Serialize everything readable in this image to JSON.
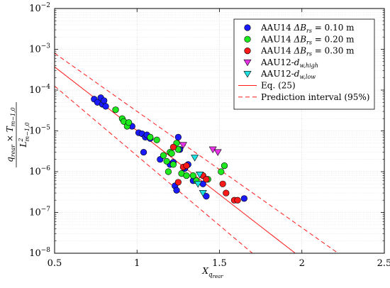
{
  "chart_data": {
    "type": "scatter",
    "title": "",
    "xlabel": "X_q_rear",
    "ylabel": "q_rear × T_m-1,0 / L²_m-1,0",
    "x_axis": {
      "range": [
        0.5,
        2.5
      ],
      "ticks": [
        0.5,
        1,
        1.5,
        2,
        2.5
      ],
      "tick_labels": [
        "0.5",
        "1",
        "1.5",
        "2",
        "2.5"
      ]
    },
    "y_axis": {
      "scale": "log",
      "range": [
        1e-08,
        0.01
      ],
      "ticks": [
        1e-08,
        1e-07,
        1e-06,
        1e-05,
        0.0001,
        0.001,
        0.01
      ],
      "tick_labels": [
        "10^-8",
        "10^-7",
        "10^-6",
        "10^-5",
        "10^-4",
        "10^-3",
        "10^-2"
      ]
    },
    "grid": true,
    "legend_position": "top-right",
    "series": [
      {
        "name": "AAU14 ΔB_rs = 0.10 m",
        "marker": "circle",
        "color": "#1a1aff",
        "points": [
          [
            0.74,
            6e-05
          ],
          [
            0.76,
            5e-05
          ],
          [
            0.78,
            6.5e-05
          ],
          [
            0.79,
            4.5e-05
          ],
          [
            0.8,
            5.5e-05
          ],
          [
            0.81,
            4e-05
          ],
          [
            0.97,
            1.3e-05
          ],
          [
            1.01,
            9e-06
          ],
          [
            1.03,
            8.5e-06
          ],
          [
            1.05,
            7e-06
          ],
          [
            1.06,
            8e-06
          ],
          [
            1.08,
            6.5e-06
          ],
          [
            1.04,
            3e-06
          ],
          [
            1.14,
            2e-06
          ],
          [
            1.2,
            1.5e-06
          ],
          [
            1.22,
            1.7e-06
          ],
          [
            1.23,
            4.5e-07
          ],
          [
            1.24,
            3.5e-07
          ],
          [
            1.25,
            7e-06
          ],
          [
            1.26,
            3.5e-06
          ],
          [
            1.29,
            1.2e-06
          ],
          [
            1.31,
            1.5e-06
          ],
          [
            1.34,
            6e-07
          ],
          [
            1.4,
            5e-07
          ],
          [
            1.42,
            2.5e-07
          ],
          [
            1.65,
            2.2e-07
          ]
        ]
      },
      {
        "name": "AAU14 ΔB_rs = 0.20 m",
        "marker": "circle",
        "color": "#1ee81e",
        "points": [
          [
            0.87,
            3.3e-05
          ],
          [
            0.91,
            2e-05
          ],
          [
            0.92,
            1.7e-05
          ],
          [
            0.94,
            1.3e-05
          ],
          [
            0.95,
            1.6e-05
          ],
          [
            1.08,
            7e-06
          ],
          [
            1.12,
            6e-06
          ],
          [
            1.16,
            2.5e-06
          ],
          [
            1.18,
            1.8e-06
          ],
          [
            1.19,
            1e-06
          ],
          [
            1.2,
            3e-06
          ],
          [
            1.21,
            2.8e-06
          ],
          [
            1.22,
            1.5e-06
          ],
          [
            1.24,
            5e-06
          ],
          [
            1.25,
            3.5e-06
          ],
          [
            1.27,
            9e-07
          ],
          [
            1.3,
            8e-07
          ],
          [
            1.34,
            8e-07
          ],
          [
            1.36,
            6e-07
          ],
          [
            1.4,
            8e-07
          ],
          [
            1.43,
            6.5e-07
          ],
          [
            1.51,
            1e-06
          ],
          [
            1.53,
            1.4e-06
          ]
        ]
      },
      {
        "name": "AAU14 ΔB_rs = 0.30 m",
        "marker": "circle",
        "color": "#ff1a1a",
        "points": [
          [
            1.22,
            4e-06
          ],
          [
            1.25,
            5.5e-07
          ],
          [
            1.28,
            1.3e-06
          ],
          [
            1.3,
            1.4e-06
          ],
          [
            1.4,
            8e-07
          ],
          [
            1.42,
            6.5e-07
          ],
          [
            1.52,
            5e-07
          ],
          [
            1.54,
            3e-07
          ],
          [
            1.59,
            2e-07
          ],
          [
            1.61,
            2e-07
          ]
        ]
      },
      {
        "name": "AAU12-d_w,high",
        "marker": "triangle-down",
        "color": "#e633e6",
        "points": [
          [
            1.28,
            4.5e-06
          ],
          [
            1.46,
            3.5e-06
          ],
          [
            1.49,
            3e-06
          ]
        ]
      },
      {
        "name": "AAU12-d_w,low",
        "marker": "triangle-down",
        "color": "#1ee0e0",
        "points": [
          [
            1.35,
            2.2e-06
          ],
          [
            1.37,
            5e-07
          ],
          [
            1.38,
            8.5e-07
          ],
          [
            1.4,
            3e-07
          ]
        ]
      }
    ],
    "lines": [
      {
        "name": "Eq. (25)",
        "style": "solid",
        "color": "#ff1a1a",
        "x": [
          0.5,
          1.96
        ],
        "y": [
          0.00037,
          1e-08
        ]
      },
      {
        "name": "Prediction interval (95%)",
        "style": "dashed",
        "color": "#ff1a1a",
        "x": [
          0.5,
          2.22
        ],
        "y": [
          0.0008,
          1e-08
        ]
      },
      {
        "name": "",
        "style": "dashed",
        "color": "#ff1a1a",
        "x": [
          0.5,
          1.7
        ],
        "y": [
          0.000125,
          1e-08
        ]
      }
    ]
  }
}
